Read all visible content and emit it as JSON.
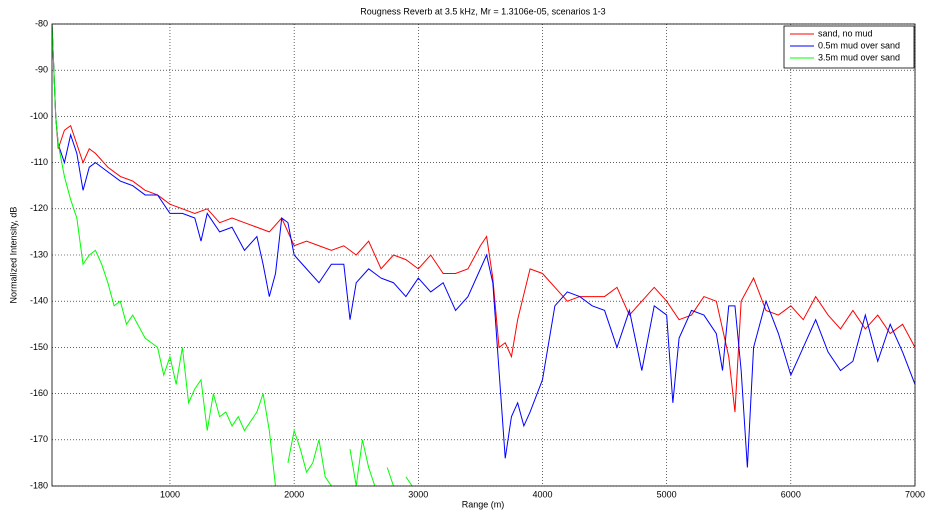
{
  "chart_data": {
    "type": "line",
    "title": "Rougness Reverb at 3.5 kHz, Mr = 1.3106e-05, scenarios 1-3",
    "x_label": "Range (m)",
    "y_label": "Normalized Intensity, dB",
    "xlim": [
      50,
      7000
    ],
    "ylim": [
      -180,
      -80
    ],
    "xticks": [
      1000,
      2000,
      3000,
      4000,
      5000,
      6000,
      7000
    ],
    "yticks": [
      -80,
      -90,
      -100,
      -110,
      -120,
      -130,
      -140,
      -150,
      -160,
      -170,
      -180
    ],
    "grid": true,
    "legend": "top-right",
    "series": [
      {
        "name": "sand, no mud",
        "color": "#ff0000",
        "x": [
          50,
          80,
          100,
          150,
          200,
          250,
          300,
          350,
          400,
          500,
          600,
          700,
          800,
          900,
          1000,
          1100,
          1200,
          1300,
          1400,
          1500,
          1600,
          1700,
          1800,
          1900,
          2000,
          2100,
          2200,
          2300,
          2400,
          2500,
          2600,
          2700,
          2800,
          2900,
          3000,
          3100,
          3200,
          3300,
          3400,
          3500,
          3550,
          3600,
          3650,
          3700,
          3750,
          3800,
          3900,
          4000,
          4100,
          4200,
          4300,
          4400,
          4500,
          4600,
          4700,
          4800,
          4900,
          5000,
          5100,
          5200,
          5300,
          5400,
          5500,
          5550,
          5600,
          5700,
          5800,
          5900,
          6000,
          6100,
          6200,
          6300,
          6400,
          6500,
          6600,
          6700,
          6800,
          6900,
          7000
        ],
        "values": [
          -80,
          -100,
          -107,
          -103,
          -102,
          -106,
          -110,
          -107,
          -108,
          -111,
          -113,
          -114,
          -116,
          -117,
          -119,
          -120,
          -121,
          -120,
          -123,
          -122,
          -123,
          -124,
          -125,
          -122,
          -128,
          -127,
          -128,
          -129,
          -128,
          -130,
          -127,
          -133,
          -130,
          -131,
          -133,
          -130,
          -134,
          -134,
          -133,
          -128,
          -126,
          -135,
          -150,
          -149,
          -152,
          -144,
          -133,
          -134,
          -137,
          -140,
          -139,
          -139,
          -139,
          -137,
          -143,
          -140,
          -137,
          -140,
          -144,
          -143,
          -139,
          -140,
          -152,
          -164,
          -140,
          -135,
          -142,
          -143,
          -141,
          -144,
          -139,
          -143,
          -146,
          -142,
          -146,
          -143,
          -147,
          -145,
          -150
        ]
      },
      {
        "name": "0.5m mud over sand",
        "color": "#0000ff",
        "x": [
          50,
          80,
          100,
          150,
          200,
          250,
          300,
          350,
          400,
          500,
          600,
          700,
          800,
          900,
          1000,
          1100,
          1200,
          1250,
          1300,
          1400,
          1500,
          1600,
          1700,
          1750,
          1800,
          1850,
          1900,
          1950,
          2000,
          2100,
          2200,
          2300,
          2400,
          2450,
          2500,
          2600,
          2700,
          2800,
          2900,
          3000,
          3100,
          3200,
          3300,
          3400,
          3500,
          3550,
          3600,
          3650,
          3700,
          3750,
          3800,
          3850,
          3900,
          4000,
          4100,
          4200,
          4300,
          4400,
          4500,
          4600,
          4700,
          4800,
          4900,
          5000,
          5050,
          5100,
          5200,
          5300,
          5400,
          5450,
          5500,
          5550,
          5600,
          5650,
          5700,
          5800,
          5900,
          6000,
          6100,
          6200,
          6300,
          6400,
          6500,
          6600,
          6700,
          6800,
          6900,
          7000
        ],
        "values": [
          -80,
          -100,
          -106,
          -110,
          -104,
          -108,
          -116,
          -111,
          -110,
          -112,
          -114,
          -115,
          -117,
          -117,
          -121,
          -121,
          -122,
          -127,
          -121,
          -125,
          -124,
          -129,
          -126,
          -132,
          -139,
          -134,
          -122,
          -123,
          -130,
          -133,
          -136,
          -132,
          -132,
          -144,
          -136,
          -133,
          -135,
          -136,
          -139,
          -135,
          -138,
          -136,
          -142,
          -139,
          -133,
          -130,
          -136,
          -155,
          -174,
          -165,
          -162,
          -167,
          -164,
          -157,
          -141,
          -138,
          -139,
          -141,
          -142,
          -150,
          -142,
          -155,
          -141,
          -143,
          -162,
          -148,
          -142,
          -143,
          -147,
          -155,
          -141,
          -141,
          -155,
          -176,
          -150,
          -140,
          -147,
          -156,
          -150,
          -144,
          -151,
          -155,
          -153,
          -143,
          -153,
          -145,
          -151,
          -158
        ]
      },
      {
        "name": "3.5m mud over sand",
        "color": "#00ff00",
        "x": [
          50,
          80,
          100,
          150,
          200,
          250,
          300,
          350,
          400,
          450,
          500,
          550,
          600,
          650,
          700,
          800,
          900,
          950,
          1000,
          1050,
          1100,
          1150,
          1200,
          1250,
          1300,
          1350,
          1400,
          1450,
          1500,
          1550,
          1600,
          1700,
          1750,
          1800,
          1850,
          1900,
          1950,
          2000,
          2050,
          2100,
          2150,
          2200,
          2250,
          2300,
          2350,
          2450,
          2500,
          2550,
          2600,
          2650,
          2700,
          2750,
          2800,
          2850,
          2900,
          2950
        ],
        "values": [
          -80,
          -100,
          -106,
          -113,
          -118,
          -122,
          -132,
          -130,
          -129,
          -132,
          -136,
          -141,
          -140,
          -145,
          -143,
          -148,
          -150,
          -156,
          -152,
          -158,
          -150,
          -162,
          -159,
          -157,
          -168,
          -160,
          -165,
          -164,
          -167,
          -165,
          -168,
          -164,
          -160,
          -168,
          -180,
          null,
          -175,
          -168,
          -172,
          -177,
          -175,
          -170,
          -178,
          -180,
          null,
          -172,
          -180,
          -170,
          -176,
          -180,
          null,
          -176,
          -180,
          null,
          -178,
          -180
        ]
      }
    ]
  }
}
